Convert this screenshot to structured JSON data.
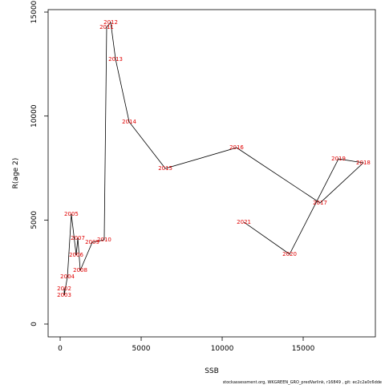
{
  "chart_data": {
    "type": "line",
    "x_label": "SSB",
    "y_label": "R(age 2)",
    "footer": "stockassessment.org, WKGREEN_GRO_predVarlink, r16849 , git: ec2c2a0c6dde",
    "point_labels": [
      "2002",
      "2003",
      "2004",
      "2005",
      "2006",
      "2007",
      "2008",
      "2009",
      "2010",
      "2011",
      "2012",
      "2013",
      "2014",
      "2015",
      "2016",
      "2017",
      "2018",
      "2019",
      "2020",
      "2021"
    ],
    "x": [
      250,
      250,
      450,
      690,
      990,
      1090,
      1240,
      1980,
      2720,
      2870,
      3120,
      3420,
      4260,
      6490,
      10890,
      16040,
      18710,
      17180,
      14160,
      11340
    ],
    "values": [
      1700,
      1390,
      2280,
      5280,
      3320,
      4130,
      2580,
      3930,
      4050,
      14270,
      14500,
      12730,
      9720,
      7480,
      8480,
      5820,
      7750,
      7940,
      3360,
      4900
    ],
    "color": "#000000",
    "label_color": "#e00000",
    "xlim": [
      -743,
      19455
    ],
    "ylim": [
      -617,
      15117
    ],
    "xticks": [
      0,
      5000,
      10000,
      15000
    ],
    "yticks": [
      0,
      5000,
      10000,
      15000
    ],
    "grid": false
  }
}
